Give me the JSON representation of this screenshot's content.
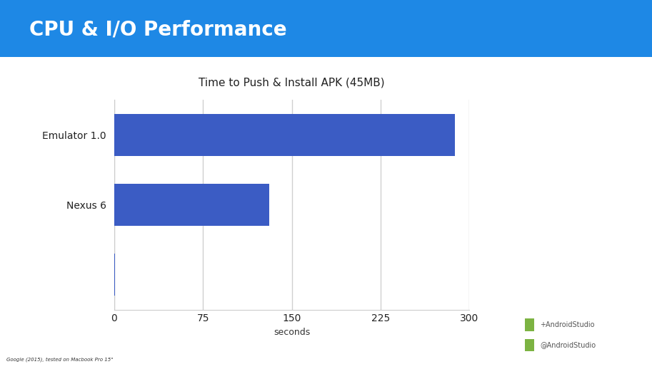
{
  "slide_title": "CPU & I/O Performance",
  "chart_data": {
    "type": "bar",
    "orientation": "horizontal",
    "title": "Time to Push & Install APK (45MB)",
    "categories": [
      "Emulator 1.0",
      "Nexus 6",
      null
    ],
    "values": [
      288,
      131,
      1
    ],
    "color": "#3b5cc4",
    "xlabel": "seconds",
    "xlim": [
      0,
      300
    ],
    "xticks": [
      0,
      75,
      150,
      225,
      300
    ],
    "grid": true
  },
  "footer": "Google (2015), tested on Macbook Pro 15\"",
  "social": [
    "+AndroidStudio",
    "@AndroidStudio"
  ]
}
